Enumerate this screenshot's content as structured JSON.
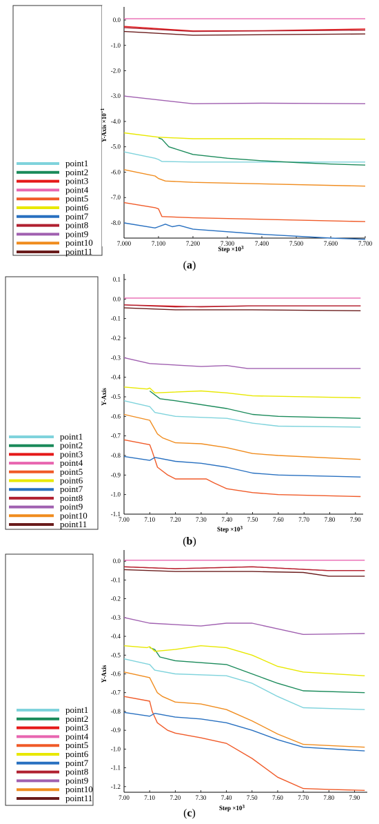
{
  "captions": [
    "a",
    "b",
    "c"
  ],
  "chart_data": [
    {
      "type": "line",
      "xlabel": "Step ×10",
      "xlabel_sup": "3",
      "ylabel": "Y-Axis ×10",
      "ylabel_sup": "−1",
      "xlim": [
        7.0,
        7.7
      ],
      "ylim": [
        -8.6,
        0.3
      ],
      "xticks": [
        "7.000",
        "7.100",
        "7.200",
        "7.300",
        "7.400",
        "7.500",
        "7.600",
        "7.700"
      ],
      "yticks": [
        "0.0",
        "-1.0",
        "-2.0",
        "-3.0",
        "-4.0",
        "-5.0",
        "-6.0",
        "-7.0",
        "-8.0"
      ],
      "legend_position": "left",
      "series": [
        {
          "name": "point1",
          "color": "#7fd3dc",
          "x": [
            7.0,
            7.09,
            7.1,
            7.11,
            7.2,
            7.7
          ],
          "y": [
            -5.2,
            -5.45,
            -5.5,
            -5.58,
            -5.6,
            -5.6
          ]
        },
        {
          "name": "point2",
          "color": "#1a8a5a",
          "x": [
            7.1,
            7.11,
            7.13,
            7.2,
            7.3,
            7.4,
            7.5,
            7.6,
            7.7
          ],
          "y": [
            -4.65,
            -4.7,
            -5.0,
            -5.3,
            -5.45,
            -5.55,
            -5.62,
            -5.68,
            -5.72
          ]
        },
        {
          "name": "point3",
          "color": "#e51919",
          "x": [
            7.0,
            7.2,
            7.4,
            7.7
          ],
          "y": [
            -0.25,
            -0.43,
            -0.42,
            -0.35
          ]
        },
        {
          "name": "point4",
          "color": "#e866b0",
          "x": [
            7.0,
            7.7
          ],
          "y": [
            0.05,
            0.05
          ]
        },
        {
          "name": "point5",
          "color": "#f05a28",
          "x": [
            7.0,
            7.09,
            7.1,
            7.11,
            7.2,
            7.7
          ],
          "y": [
            -7.2,
            -7.4,
            -7.45,
            -7.75,
            -7.8,
            -7.95
          ]
        },
        {
          "name": "point6",
          "color": "#e8e800",
          "x": [
            7.0,
            7.1,
            7.2,
            7.4,
            7.7
          ],
          "y": [
            -4.45,
            -4.62,
            -4.68,
            -4.68,
            -4.7
          ]
        },
        {
          "name": "point7",
          "color": "#2870c0",
          "x": [
            7.0,
            7.09,
            7.1,
            7.12,
            7.14,
            7.16,
            7.2,
            7.4,
            7.6,
            7.7
          ],
          "y": [
            -8.0,
            -8.2,
            -8.15,
            -8.05,
            -8.15,
            -8.1,
            -8.25,
            -8.45,
            -8.6,
            -8.65
          ]
        },
        {
          "name": "point8",
          "color": "#b02030",
          "x": [
            7.0,
            7.2,
            7.7
          ],
          "y": [
            -0.3,
            -0.45,
            -0.4
          ]
        },
        {
          "name": "point9",
          "color": "#a060b0",
          "x": [
            7.0,
            7.2,
            7.4,
            7.7
          ],
          "y": [
            -3.0,
            -3.3,
            -3.28,
            -3.3
          ]
        },
        {
          "name": "point10",
          "color": "#f08c1e",
          "x": [
            7.0,
            7.09,
            7.1,
            7.12,
            7.2,
            7.7
          ],
          "y": [
            -5.9,
            -6.15,
            -6.25,
            -6.35,
            -6.4,
            -6.55
          ]
        },
        {
          "name": "point11",
          "color": "#6a1c1c",
          "x": [
            7.0,
            7.2,
            7.7
          ],
          "y": [
            -0.45,
            -0.6,
            -0.55
          ]
        }
      ]
    },
    {
      "type": "line",
      "xlabel": "Step ×10",
      "xlabel_sup": "3",
      "ylabel": "Y-Axis",
      "ylabel_sup": "",
      "xlim": [
        7.0,
        7.93
      ],
      "ylim": [
        -1.1,
        0.1
      ],
      "xticks": [
        "7.00",
        "7.10",
        "7.20",
        "7.30",
        "7.40",
        "7.50",
        "7.60",
        "7.70",
        "7.80",
        "7.90"
      ],
      "yticks": [
        "0.1",
        "0.0",
        "-0.1",
        "-0.2",
        "-0.3",
        "-0.4",
        "-0.5",
        "-0.6",
        "-0.7",
        "-0.8",
        "-0.9",
        "-1.0",
        "-1.1"
      ],
      "legend_position": "left",
      "series": [
        {
          "name": "point1",
          "color": "#7fd3dc",
          "x": [
            7.0,
            7.1,
            7.12,
            7.2,
            7.4,
            7.5,
            7.6,
            7.92
          ],
          "y": [
            -0.52,
            -0.55,
            -0.58,
            -0.6,
            -0.61,
            -0.635,
            -0.65,
            -0.655
          ]
        },
        {
          "name": "point2",
          "color": "#1a8a5a",
          "x": [
            7.1,
            7.12,
            7.14,
            7.2,
            7.4,
            7.5,
            7.6,
            7.92
          ],
          "y": [
            -0.47,
            -0.49,
            -0.51,
            -0.52,
            -0.56,
            -0.59,
            -0.6,
            -0.61
          ]
        },
        {
          "name": "point3",
          "color": "#e51919",
          "x": [
            7.0,
            7.3,
            7.5,
            7.92
          ],
          "y": [
            -0.03,
            -0.04,
            -0.035,
            -0.035
          ]
        },
        {
          "name": "point4",
          "color": "#e866b0",
          "x": [
            7.0,
            7.92
          ],
          "y": [
            0.005,
            0.005
          ]
        },
        {
          "name": "point5",
          "color": "#f05a28",
          "x": [
            7.0,
            7.1,
            7.11,
            7.13,
            7.17,
            7.2,
            7.32,
            7.35,
            7.4,
            7.5,
            7.6,
            7.92
          ],
          "y": [
            -0.72,
            -0.745,
            -0.78,
            -0.86,
            -0.9,
            -0.92,
            -0.92,
            -0.94,
            -0.97,
            -0.99,
            -1.0,
            -1.01
          ]
        },
        {
          "name": "point6",
          "color": "#e8e800",
          "x": [
            7.0,
            7.09,
            7.1,
            7.12,
            7.3,
            7.4,
            7.5,
            7.92
          ],
          "y": [
            -0.45,
            -0.46,
            -0.455,
            -0.48,
            -0.47,
            -0.48,
            -0.495,
            -0.505
          ]
        },
        {
          "name": "point7",
          "color": "#2870c0",
          "x": [
            7.0,
            7.1,
            7.12,
            7.2,
            7.3,
            7.4,
            7.5,
            7.6,
            7.92
          ],
          "y": [
            -0.805,
            -0.825,
            -0.81,
            -0.83,
            -0.84,
            -0.86,
            -0.89,
            -0.9,
            -0.91
          ]
        },
        {
          "name": "point8",
          "color": "#b02030",
          "x": [
            7.0,
            7.2,
            7.5,
            7.92
          ],
          "y": [
            -0.03,
            -0.04,
            -0.035,
            -0.035
          ]
        },
        {
          "name": "point9",
          "color": "#a060b0",
          "x": [
            7.0,
            7.1,
            7.3,
            7.4,
            7.48,
            7.6,
            7.92
          ],
          "y": [
            -0.3,
            -0.33,
            -0.345,
            -0.34,
            -0.355,
            -0.355,
            -0.355
          ]
        },
        {
          "name": "point10",
          "color": "#f08c1e",
          "x": [
            7.0,
            7.1,
            7.13,
            7.15,
            7.2,
            7.3,
            7.4,
            7.5,
            7.6,
            7.92
          ],
          "y": [
            -0.59,
            -0.62,
            -0.69,
            -0.71,
            -0.735,
            -0.74,
            -0.76,
            -0.79,
            -0.8,
            -0.82
          ]
        },
        {
          "name": "point11",
          "color": "#6a1c1c",
          "x": [
            7.0,
            7.2,
            7.5,
            7.92
          ],
          "y": [
            -0.045,
            -0.055,
            -0.055,
            -0.06
          ]
        }
      ]
    },
    {
      "type": "line",
      "xlabel": "Step ×10",
      "xlabel_sup": "3",
      "ylabel": "Y-Axis",
      "ylabel_sup": "",
      "xlim": [
        7.0,
        7.95
      ],
      "ylim": [
        -1.23,
        0.03
      ],
      "xticks": [
        "7.00",
        "7.10",
        "7.20",
        "7.30",
        "7.40",
        "7.50",
        "7.60",
        "7.70",
        "7.80",
        "7.90"
      ],
      "yticks": [
        "0.0",
        "-0.1",
        "-0.2",
        "-0.3",
        "-0.4",
        "-0.5",
        "-0.6",
        "-0.7",
        "-0.8",
        "-0.9",
        "-1.0",
        "-1.1",
        "-1.2"
      ],
      "legend_position": "left",
      "series": [
        {
          "name": "point1",
          "color": "#7fd3dc",
          "x": [
            7.0,
            7.1,
            7.12,
            7.2,
            7.4,
            7.5,
            7.6,
            7.7,
            7.94
          ],
          "y": [
            -0.52,
            -0.55,
            -0.58,
            -0.6,
            -0.61,
            -0.65,
            -0.72,
            -0.78,
            -0.79
          ]
        },
        {
          "name": "point2",
          "color": "#1a8a5a",
          "x": [
            7.1,
            7.12,
            7.14,
            7.2,
            7.4,
            7.5,
            7.6,
            7.7,
            7.94
          ],
          "y": [
            -0.46,
            -0.47,
            -0.51,
            -0.53,
            -0.55,
            -0.6,
            -0.65,
            -0.69,
            -0.7
          ]
        },
        {
          "name": "point3",
          "color": "#e51919",
          "x": [
            7.0,
            7.2,
            7.5,
            7.8,
            7.94
          ],
          "y": [
            -0.03,
            -0.04,
            -0.03,
            -0.05,
            -0.05
          ]
        },
        {
          "name": "point4",
          "color": "#e866b0",
          "x": [
            7.0,
            7.94
          ],
          "y": [
            0.005,
            0.005
          ]
        },
        {
          "name": "point5",
          "color": "#f05a28",
          "x": [
            7.0,
            7.1,
            7.11,
            7.13,
            7.17,
            7.2,
            7.3,
            7.4,
            7.5,
            7.6,
            7.7,
            7.8,
            7.94
          ],
          "y": [
            -0.72,
            -0.745,
            -0.8,
            -0.86,
            -0.9,
            -0.915,
            -0.94,
            -0.97,
            -1.05,
            -1.15,
            -1.21,
            -1.215,
            -1.22
          ]
        },
        {
          "name": "point6",
          "color": "#e8e800",
          "x": [
            7.0,
            7.09,
            7.1,
            7.12,
            7.2,
            7.3,
            7.4,
            7.5,
            7.6,
            7.7,
            7.94
          ],
          "y": [
            -0.45,
            -0.46,
            -0.455,
            -0.48,
            -0.47,
            -0.45,
            -0.46,
            -0.5,
            -0.56,
            -0.59,
            -0.61
          ]
        },
        {
          "name": "point7",
          "color": "#2870c0",
          "x": [
            7.0,
            7.1,
            7.12,
            7.2,
            7.3,
            7.4,
            7.5,
            7.6,
            7.7,
            7.94
          ],
          "y": [
            -0.805,
            -0.825,
            -0.81,
            -0.83,
            -0.84,
            -0.86,
            -0.9,
            -0.95,
            -0.99,
            -1.01
          ]
        },
        {
          "name": "point8",
          "color": "#b02030",
          "x": [
            7.0,
            7.2,
            7.5,
            7.8,
            7.94
          ],
          "y": [
            -0.03,
            -0.04,
            -0.03,
            -0.05,
            -0.05
          ]
        },
        {
          "name": "point9",
          "color": "#a060b0",
          "x": [
            7.0,
            7.1,
            7.3,
            7.4,
            7.5,
            7.6,
            7.7,
            7.94
          ],
          "y": [
            -0.3,
            -0.33,
            -0.345,
            -0.33,
            -0.33,
            -0.36,
            -0.39,
            -0.385
          ]
        },
        {
          "name": "point10",
          "color": "#f08c1e",
          "x": [
            7.0,
            7.1,
            7.13,
            7.15,
            7.2,
            7.3,
            7.4,
            7.5,
            7.6,
            7.7,
            7.94
          ],
          "y": [
            -0.59,
            -0.62,
            -0.7,
            -0.72,
            -0.75,
            -0.76,
            -0.79,
            -0.85,
            -0.92,
            -0.975,
            -0.99
          ]
        },
        {
          "name": "point11",
          "color": "#6a1c1c",
          "x": [
            7.0,
            7.2,
            7.5,
            7.7,
            7.8,
            7.94
          ],
          "y": [
            -0.045,
            -0.055,
            -0.055,
            -0.06,
            -0.08,
            -0.08
          ]
        }
      ]
    }
  ]
}
